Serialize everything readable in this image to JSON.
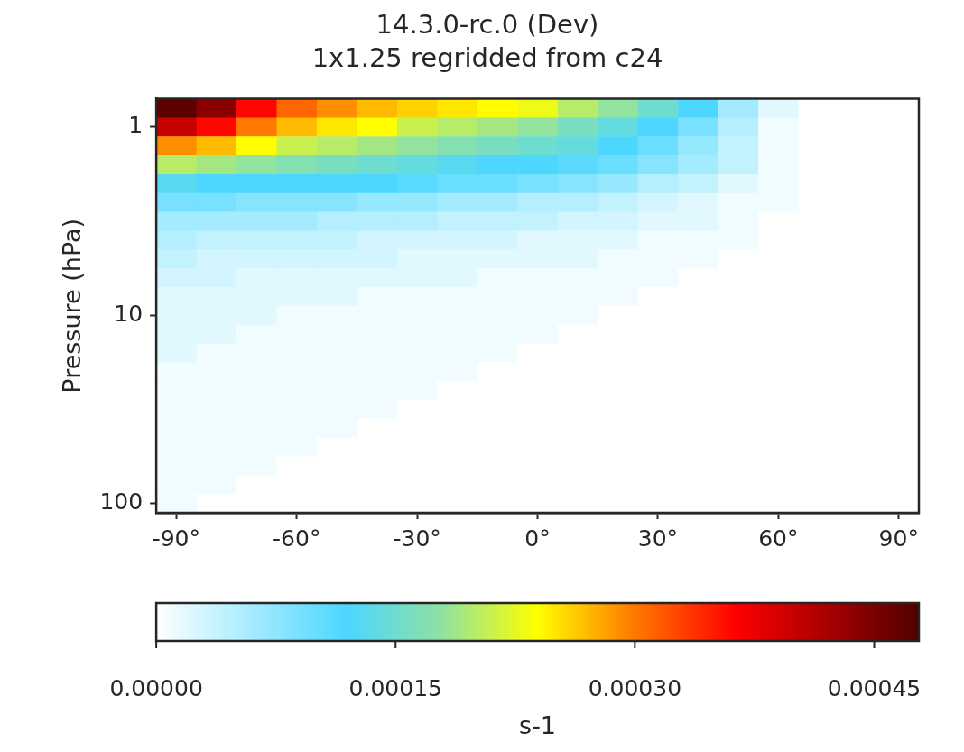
{
  "chart_data": {
    "type": "heatmap",
    "title": "14.3.0-rc.0 (Dev)",
    "subtitle": "1x1.25 regridded from c24",
    "ylabel": "Pressure (hPa)",
    "clabel": "s-1",
    "grid": false,
    "clim": [
      0,
      0.000478
    ],
    "cticks": [
      {
        "value": 0,
        "label": "0.00000"
      },
      {
        "value": 0.00015,
        "label": "0.00015"
      },
      {
        "value": 0.0003,
        "label": "0.00030"
      },
      {
        "value": 0.00045,
        "label": "0.00045"
      }
    ],
    "categories": [
      "-90°",
      null,
      null,
      "-60°",
      null,
      null,
      "-30°",
      null,
      null,
      "0°",
      null,
      null,
      "30°",
      null,
      null,
      "60°",
      null,
      null,
      "90°"
    ],
    "y_categories": [
      null,
      "1",
      null,
      null,
      null,
      null,
      null,
      null,
      null,
      null,
      null,
      "10",
      null,
      null,
      null,
      null,
      null,
      null,
      null,
      null,
      null,
      "100"
    ],
    "cells": [
      [
        0.00047,
        0.00044,
        0.00036,
        0.00031,
        0.00029,
        0.00027,
        0.00026,
        0.00025,
        0.00024,
        0.00023,
        0.0002,
        0.00018,
        0.00015,
        0.00012,
        6e-05,
        2e-05,
        0,
        0,
        0
      ],
      [
        0.0004,
        0.00036,
        0.0003,
        0.00027,
        0.00025,
        0.00024,
        0.00021,
        0.0002,
        0.00019,
        0.00018,
        0.00016,
        0.00014,
        0.00012,
        9e-05,
        5e-05,
        1e-05,
        0,
        0,
        0
      ],
      [
        0.00029,
        0.00027,
        0.00024,
        0.00021,
        0.0002,
        0.00019,
        0.00018,
        0.00017,
        0.00016,
        0.00015,
        0.00014,
        0.00012,
        0.0001,
        7e-05,
        4e-05,
        1e-05,
        0,
        0,
        0
      ],
      [
        0.0002,
        0.00019,
        0.00018,
        0.00017,
        0.00016,
        0.00015,
        0.00014,
        0.00013,
        0.00012,
        0.00012,
        0.00011,
        0.0001,
        8e-05,
        6e-05,
        4e-05,
        1e-05,
        0,
        0,
        0
      ],
      [
        0.00013,
        0.00012,
        0.00012,
        0.00012,
        0.00012,
        0.00012,
        0.00011,
        0.0001,
        0.0001,
        9e-05,
        8e-05,
        7e-05,
        5e-05,
        4e-05,
        2e-05,
        1e-05,
        0,
        0,
        0
      ],
      [
        9e-05,
        9e-05,
        8e-05,
        8e-05,
        8e-05,
        7e-05,
        7e-05,
        6e-05,
        6e-05,
        5e-05,
        5e-05,
        4e-05,
        3e-05,
        2e-05,
        1e-05,
        1e-05,
        0,
        0,
        0
      ],
      [
        6e-05,
        6e-05,
        6e-05,
        6e-05,
        5e-05,
        5e-05,
        5e-05,
        4e-05,
        4e-05,
        4e-05,
        3e-05,
        3e-05,
        2e-05,
        2e-05,
        1e-05,
        0,
        0,
        0,
        0
      ],
      [
        5e-05,
        4e-05,
        4e-05,
        4e-05,
        4e-05,
        3e-05,
        3e-05,
        3e-05,
        3e-05,
        2e-05,
        2e-05,
        2e-05,
        1e-05,
        1e-05,
        1e-05,
        0,
        0,
        0,
        0
      ],
      [
        4e-05,
        3e-05,
        3e-05,
        3e-05,
        3e-05,
        3e-05,
        2e-05,
        2e-05,
        2e-05,
        2e-05,
        2e-05,
        1e-05,
        1e-05,
        1e-05,
        0,
        0,
        0,
        0,
        0
      ],
      [
        3e-05,
        3e-05,
        2e-05,
        2e-05,
        2e-05,
        2e-05,
        2e-05,
        2e-05,
        1e-05,
        1e-05,
        1e-05,
        1e-05,
        1e-05,
        0,
        0,
        0,
        0,
        0,
        0
      ],
      [
        2e-05,
        2e-05,
        2e-05,
        2e-05,
        2e-05,
        1e-05,
        1e-05,
        1e-05,
        1e-05,
        1e-05,
        1e-05,
        1e-05,
        0,
        0,
        0,
        0,
        0,
        0,
        0
      ],
      [
        2e-05,
        2e-05,
        2e-05,
        1e-05,
        1e-05,
        1e-05,
        1e-05,
        1e-05,
        1e-05,
        1e-05,
        1e-05,
        0,
        0,
        0,
        0,
        0,
        0,
        0,
        0
      ],
      [
        2e-05,
        2e-05,
        1e-05,
        1e-05,
        1e-05,
        1e-05,
        1e-05,
        1e-05,
        1e-05,
        1e-05,
        0,
        0,
        0,
        0,
        0,
        0,
        0,
        0,
        0
      ],
      [
        2e-05,
        1e-05,
        1e-05,
        1e-05,
        1e-05,
        1e-05,
        1e-05,
        1e-05,
        1e-05,
        0,
        0,
        0,
        0,
        0,
        0,
        0,
        0,
        0,
        0
      ],
      [
        1e-05,
        1e-05,
        1e-05,
        1e-05,
        1e-05,
        1e-05,
        1e-05,
        1e-05,
        0,
        0,
        0,
        0,
        0,
        0,
        0,
        0,
        0,
        0,
        0
      ],
      [
        1e-05,
        1e-05,
        1e-05,
        1e-05,
        1e-05,
        1e-05,
        1e-05,
        0,
        0,
        0,
        0,
        0,
        0,
        0,
        0,
        0,
        0,
        0,
        0
      ],
      [
        1e-05,
        1e-05,
        1e-05,
        1e-05,
        1e-05,
        1e-05,
        0,
        0,
        0,
        0,
        0,
        0,
        0,
        0,
        0,
        0,
        0,
        0,
        0
      ],
      [
        1e-05,
        1e-05,
        1e-05,
        1e-05,
        1e-05,
        0,
        0,
        0,
        0,
        0,
        0,
        0,
        0,
        0,
        0,
        0,
        0,
        0,
        0
      ],
      [
        1e-05,
        1e-05,
        1e-05,
        1e-05,
        0,
        0,
        0,
        0,
        0,
        0,
        0,
        0,
        0,
        0,
        0,
        0,
        0,
        0,
        0
      ],
      [
        1e-05,
        1e-05,
        1e-05,
        0,
        0,
        0,
        0,
        0,
        0,
        0,
        0,
        0,
        0,
        0,
        0,
        0,
        0,
        0,
        0
      ],
      [
        1e-05,
        1e-05,
        0,
        0,
        0,
        0,
        0,
        0,
        0,
        0,
        0,
        0,
        0,
        0,
        0,
        0,
        0,
        0,
        0
      ],
      [
        1e-05,
        0,
        0,
        0,
        0,
        0,
        0,
        0,
        0,
        0,
        0,
        0,
        0,
        0,
        0,
        0,
        0,
        0,
        0
      ]
    ]
  }
}
